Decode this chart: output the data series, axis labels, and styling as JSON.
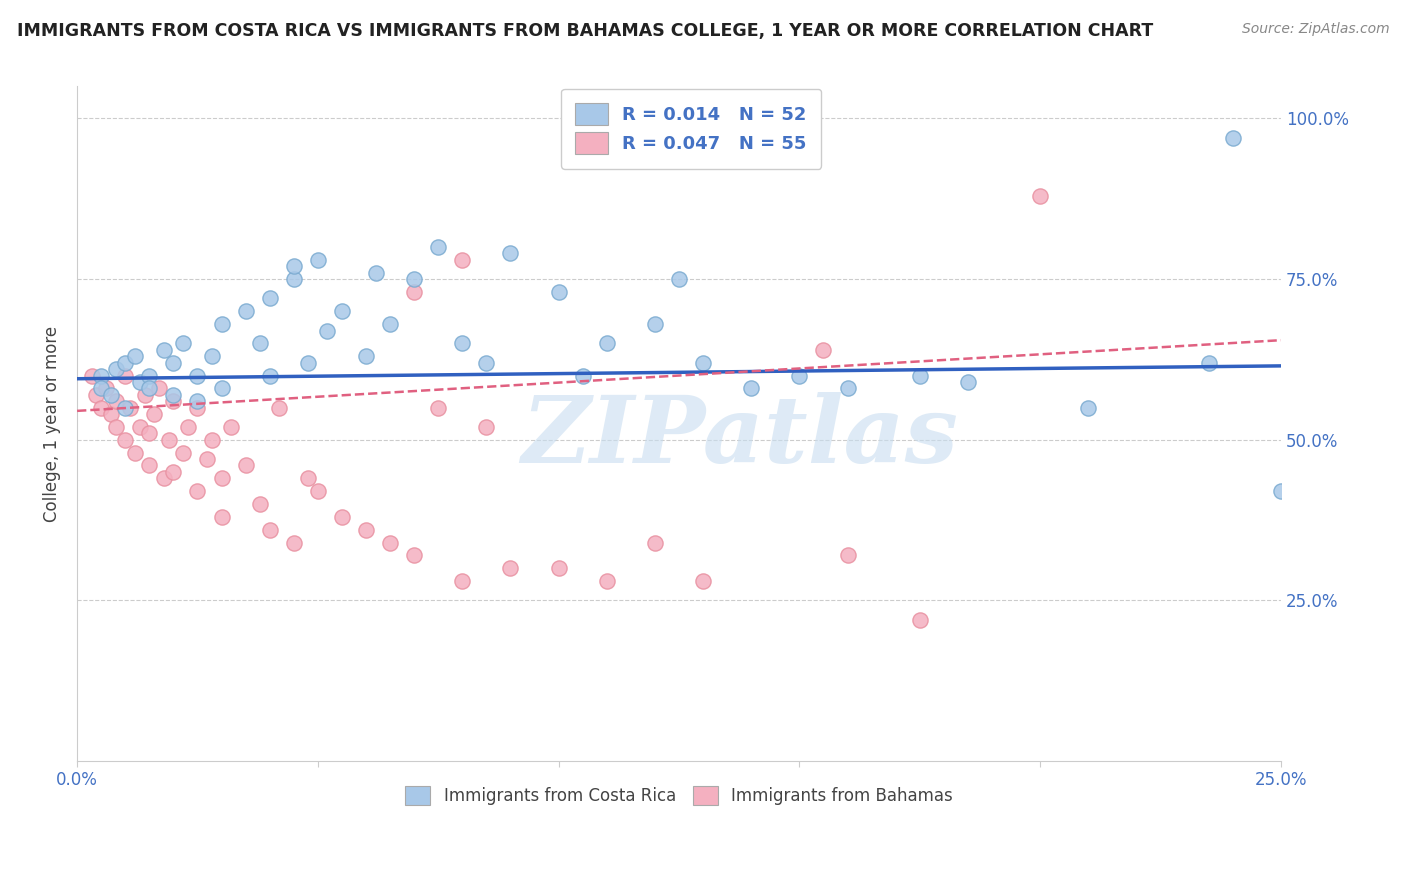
{
  "title": "IMMIGRANTS FROM COSTA RICA VS IMMIGRANTS FROM BAHAMAS COLLEGE, 1 YEAR OR MORE CORRELATION CHART",
  "source": "Source: ZipAtlas.com",
  "ylabel": "College, 1 year or more",
  "xlim": [
    0.0,
    0.25
  ],
  "ylim": [
    0.0,
    1.05
  ],
  "xtick_positions": [
    0.0,
    0.05,
    0.1,
    0.15,
    0.2,
    0.25
  ],
  "xtick_labels": [
    "0.0%",
    "",
    "",
    "",
    "",
    "25.0%"
  ],
  "ytick_positions": [
    0.25,
    0.5,
    0.75,
    1.0
  ],
  "ytick_labels": [
    "25.0%",
    "50.0%",
    "75.0%",
    "100.0%"
  ],
  "series1_color": "#a8c8e8",
  "series2_color": "#f4b0c0",
  "series1_edge": "#7aaad0",
  "series2_edge": "#e890a0",
  "trendline1_color": "#3060c0",
  "trendline2_color": "#e06080",
  "legend_label1": "R = 0.014   N = 52",
  "legend_label2": "R = 0.047   N = 55",
  "bottom_label1": "Immigrants from Costa Rica",
  "bottom_label2": "Immigrants from Bahamas",
  "watermark": "ZIPatlas",
  "watermark_color": "#c8ddf0",
  "blue_x": [
    0.005,
    0.005,
    0.007,
    0.008,
    0.01,
    0.01,
    0.012,
    0.013,
    0.015,
    0.015,
    0.018,
    0.02,
    0.02,
    0.022,
    0.025,
    0.025,
    0.028,
    0.03,
    0.03,
    0.035,
    0.038,
    0.04,
    0.04,
    0.045,
    0.045,
    0.048,
    0.05,
    0.052,
    0.055,
    0.06,
    0.062,
    0.065,
    0.07,
    0.075,
    0.08,
    0.085,
    0.09,
    0.1,
    0.105,
    0.11,
    0.12,
    0.125,
    0.13,
    0.14,
    0.15,
    0.16,
    0.175,
    0.185,
    0.21,
    0.235,
    0.24,
    0.25
  ],
  "blue_y": [
    0.6,
    0.58,
    0.57,
    0.61,
    0.62,
    0.55,
    0.63,
    0.59,
    0.6,
    0.58,
    0.64,
    0.62,
    0.57,
    0.65,
    0.6,
    0.56,
    0.63,
    0.58,
    0.68,
    0.7,
    0.65,
    0.6,
    0.72,
    0.75,
    0.77,
    0.62,
    0.78,
    0.67,
    0.7,
    0.63,
    0.76,
    0.68,
    0.75,
    0.8,
    0.65,
    0.62,
    0.79,
    0.73,
    0.6,
    0.65,
    0.68,
    0.75,
    0.62,
    0.58,
    0.6,
    0.58,
    0.6,
    0.59,
    0.55,
    0.62,
    0.97,
    0.42
  ],
  "pink_x": [
    0.003,
    0.004,
    0.005,
    0.006,
    0.007,
    0.008,
    0.008,
    0.01,
    0.01,
    0.011,
    0.012,
    0.013,
    0.014,
    0.015,
    0.015,
    0.016,
    0.017,
    0.018,
    0.019,
    0.02,
    0.02,
    0.022,
    0.023,
    0.025,
    0.025,
    0.027,
    0.028,
    0.03,
    0.03,
    0.032,
    0.035,
    0.038,
    0.04,
    0.042,
    0.045,
    0.048,
    0.05,
    0.055,
    0.06,
    0.065,
    0.07,
    0.075,
    0.08,
    0.085,
    0.09,
    0.1,
    0.11,
    0.12,
    0.13,
    0.07,
    0.08,
    0.155,
    0.16,
    0.175,
    0.2
  ],
  "pink_y": [
    0.6,
    0.57,
    0.55,
    0.58,
    0.54,
    0.52,
    0.56,
    0.6,
    0.5,
    0.55,
    0.48,
    0.52,
    0.57,
    0.46,
    0.51,
    0.54,
    0.58,
    0.44,
    0.5,
    0.56,
    0.45,
    0.48,
    0.52,
    0.55,
    0.42,
    0.47,
    0.5,
    0.44,
    0.38,
    0.52,
    0.46,
    0.4,
    0.36,
    0.55,
    0.34,
    0.44,
    0.42,
    0.38,
    0.36,
    0.34,
    0.32,
    0.55,
    0.28,
    0.52,
    0.3,
    0.3,
    0.28,
    0.34,
    0.28,
    0.73,
    0.78,
    0.64,
    0.32,
    0.22,
    0.88
  ],
  "trendline1_x": [
    0.0,
    0.25
  ],
  "trendline1_y": [
    0.595,
    0.615
  ],
  "trendline2_x": [
    0.0,
    0.25
  ],
  "trendline2_y": [
    0.545,
    0.655
  ],
  "trendline2_style": "--"
}
